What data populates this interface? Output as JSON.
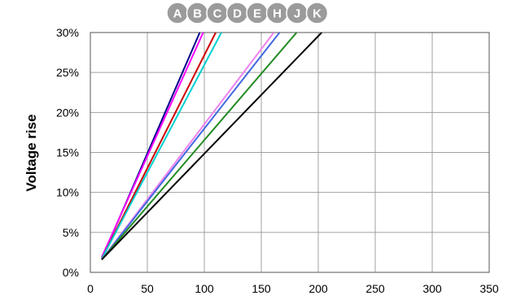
{
  "chart_data": {
    "type": "line",
    "ylabel": "Voltage rise",
    "xlim": [
      0,
      350
    ],
    "ylim": [
      0,
      30
    ],
    "x_ticks": [
      0,
      50,
      100,
      150,
      200,
      250,
      300,
      350
    ],
    "y_ticks": [
      "0%",
      "5%",
      "10%",
      "15%",
      "20%",
      "25%",
      "30%"
    ],
    "grid": true,
    "legend_badges": [
      "A",
      "B",
      "C",
      "D",
      "E",
      "H",
      "J",
      "K"
    ],
    "series": [
      {
        "color": "#00008b",
        "x": [
          10,
          96
        ],
        "y": [
          1.7,
          30
        ]
      },
      {
        "color": "#ff00ff",
        "x": [
          10,
          99
        ],
        "y": [
          1.9,
          30
        ]
      },
      {
        "color": "#cc0000",
        "x": [
          10,
          110
        ],
        "y": [
          1.7,
          30
        ]
      },
      {
        "color": "#00d0d0",
        "x": [
          10,
          115
        ],
        "y": [
          1.7,
          30
        ]
      },
      {
        "color": "#ee82ee",
        "x": [
          10,
          161
        ],
        "y": [
          1.6,
          30
        ]
      },
      {
        "color": "#4169e1",
        "x": [
          10,
          166
        ],
        "y": [
          1.6,
          30
        ]
      },
      {
        "color": "#228b22",
        "x": [
          10,
          181
        ],
        "y": [
          1.6,
          30
        ]
      },
      {
        "color": "#000000",
        "x": [
          10,
          203
        ],
        "y": [
          1.6,
          30
        ]
      }
    ]
  }
}
